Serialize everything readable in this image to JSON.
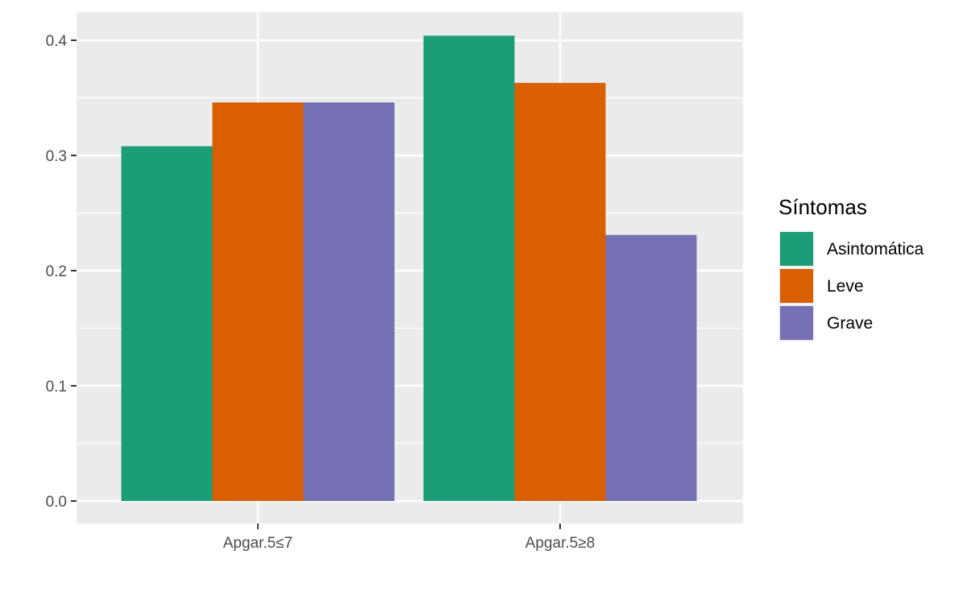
{
  "chart_data": {
    "type": "bar",
    "categories": [
      "Apgar.5≤7",
      "Apgar.5≥8"
    ],
    "series": [
      {
        "name": "Asintomática",
        "color": "#1B9E77",
        "values": [
          0.308,
          0.404
        ]
      },
      {
        "name": "Leve",
        "color": "#D95F02",
        "values": [
          0.346,
          0.363
        ]
      },
      {
        "name": "Grave",
        "color": "#7570B3",
        "values": [
          0.346,
          0.231
        ]
      }
    ],
    "ylim": [
      -0.019,
      0.424
    ],
    "yticks": [
      0.0,
      0.1,
      0.2,
      0.3,
      0.4
    ],
    "ytick_labels": [
      "0.0",
      "0.1",
      "0.2",
      "0.3",
      "0.4"
    ],
    "xlabel": "",
    "ylabel": "",
    "title": "",
    "legend": {
      "title": "Síntomas",
      "position": "right"
    },
    "grid": true,
    "panel_background": "#EBEBEB"
  }
}
